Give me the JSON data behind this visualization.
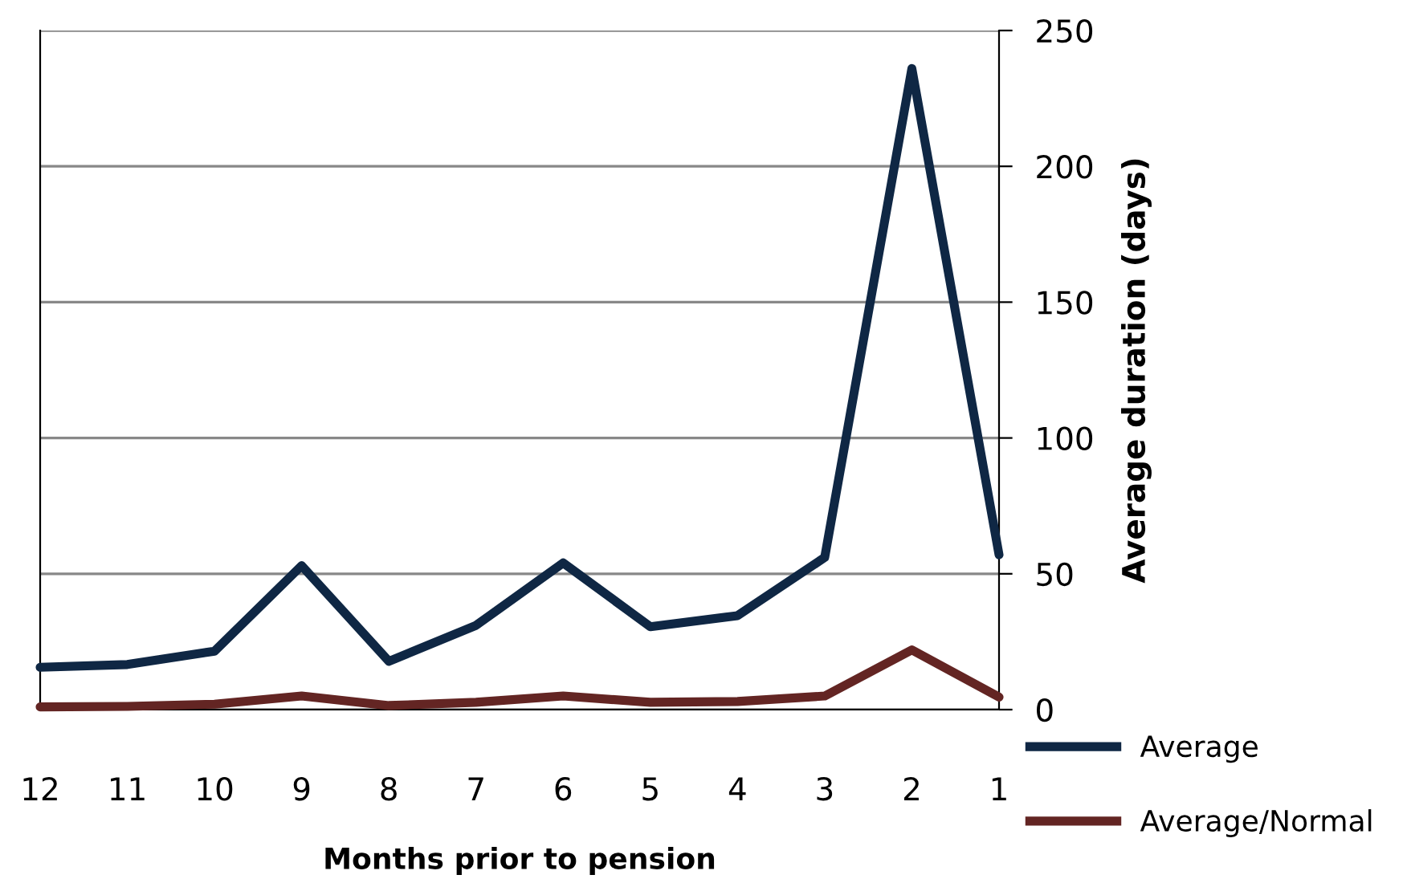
{
  "chart_data": {
    "type": "line",
    "categories": [
      "12",
      "11",
      "10",
      "9",
      "8",
      "7",
      "6",
      "5",
      "4",
      "3",
      "2",
      "1"
    ],
    "series": [
      {
        "name": "Average",
        "color": "#0f2744",
        "values": [
          15.6,
          16.6,
          21.5,
          53,
          17.8,
          31,
          54,
          30.5,
          34.6,
          56,
          236,
          57
        ]
      },
      {
        "name": "Average/Normal",
        "color": "#632523",
        "values": [
          1,
          1.2,
          2,
          5,
          1.5,
          2.7,
          5,
          2.7,
          3,
          5,
          22,
          4.6
        ]
      }
    ],
    "xlabel": "Months prior to pension",
    "ylabel": "Average duration (days)",
    "ylim": [
      0,
      250
    ],
    "yticks": [
      0,
      50,
      100,
      150,
      200,
      250
    ],
    "grid": "y",
    "legend": "bottom right",
    "marker": "none",
    "line_style": "solid"
  }
}
